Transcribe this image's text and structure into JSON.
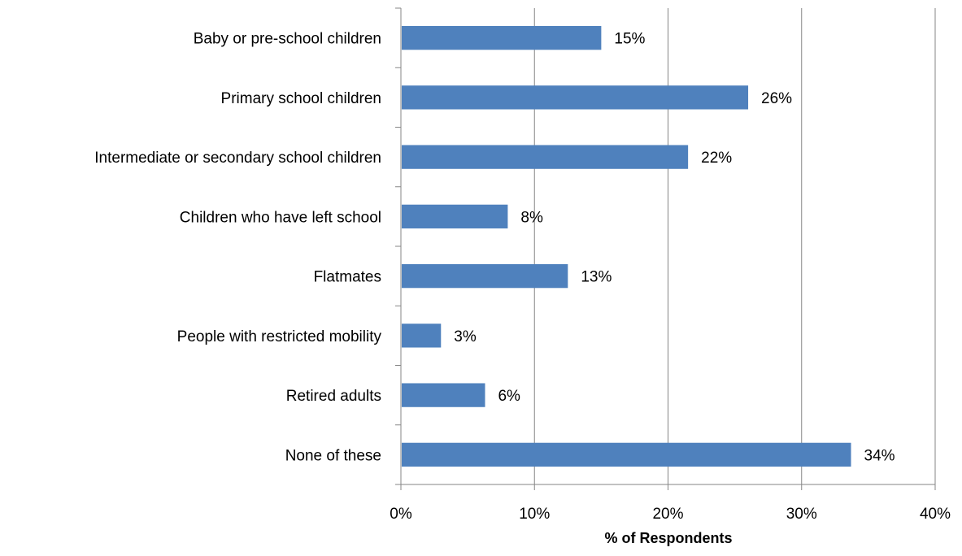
{
  "chart_data": {
    "type": "bar",
    "orientation": "horizontal",
    "title": "",
    "xlabel": "% of Respondents",
    "ylabel": "",
    "categories": [
      "Baby or pre-school children",
      "Primary school children",
      "Intermediate or secondary school children",
      "Children who have left school",
      "Flatmates",
      "People with restricted mobility",
      "Retired adults",
      "None of these"
    ],
    "values": [
      15,
      26,
      21.5,
      8,
      12.5,
      3,
      6.3,
      33.7
    ],
    "data_labels": [
      "15%",
      "26%",
      "22%",
      "8%",
      "13%",
      "3%",
      "6%",
      "34%"
    ],
    "xlim": [
      0,
      40
    ],
    "xticks": [
      0,
      10,
      20,
      30,
      40
    ],
    "xtick_labels": [
      "0%",
      "10%",
      "20%",
      "30%",
      "40%"
    ],
    "grid": "vertical",
    "legend": "none",
    "colors": {
      "bar": "#4f81bd",
      "grid": "#868686",
      "axis": "#868686"
    }
  }
}
